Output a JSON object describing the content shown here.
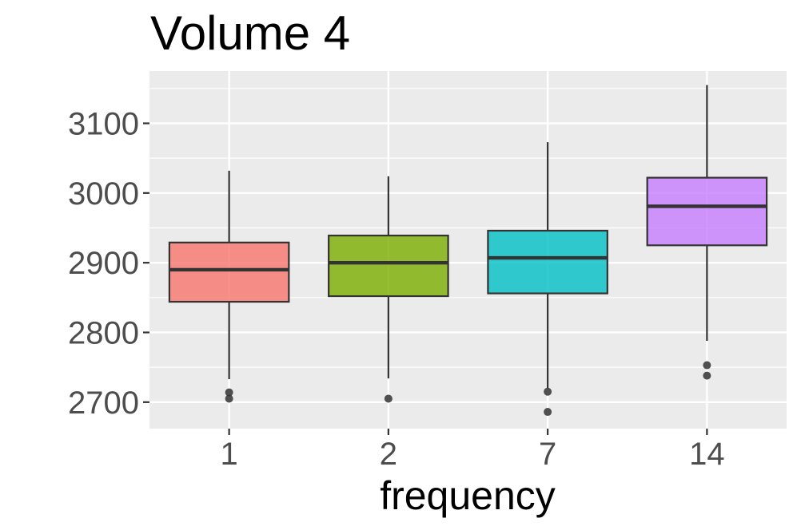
{
  "chart_data": {
    "type": "box",
    "title": "Volume 4",
    "xlabel": "frequency",
    "ylabel": "",
    "categories": [
      "1",
      "2",
      "7",
      "14"
    ],
    "ylim": [
      2662,
      3175
    ],
    "y_ticks": [
      2700,
      2800,
      2900,
      3000,
      3100
    ],
    "grid": true,
    "legend": "none",
    "panel_background": "#ebebeb",
    "boxes": [
      {
        "category": "1",
        "color": "#f8766d",
        "whisker_low": 2733,
        "q1": 2844,
        "median": 2890,
        "q3": 2929,
        "whisker_high": 3032,
        "outliers": [
          2714,
          2705
        ]
      },
      {
        "category": "2",
        "color": "#7cae00",
        "whisker_low": 2734,
        "q1": 2852,
        "median": 2900,
        "q3": 2939,
        "whisker_high": 3024,
        "outliers": [
          2705
        ]
      },
      {
        "category": "7",
        "color": "#00bfc4",
        "whisker_low": 2720,
        "q1": 2856,
        "median": 2907,
        "q3": 2946,
        "whisker_high": 3073,
        "outliers": [
          2715,
          2686
        ]
      },
      {
        "category": "14",
        "color": "#c77cff",
        "whisker_low": 2788,
        "q1": 2925,
        "median": 2981,
        "q3": 3022,
        "whisker_high": 3155,
        "outliers": [
          2753,
          2738
        ]
      }
    ]
  }
}
